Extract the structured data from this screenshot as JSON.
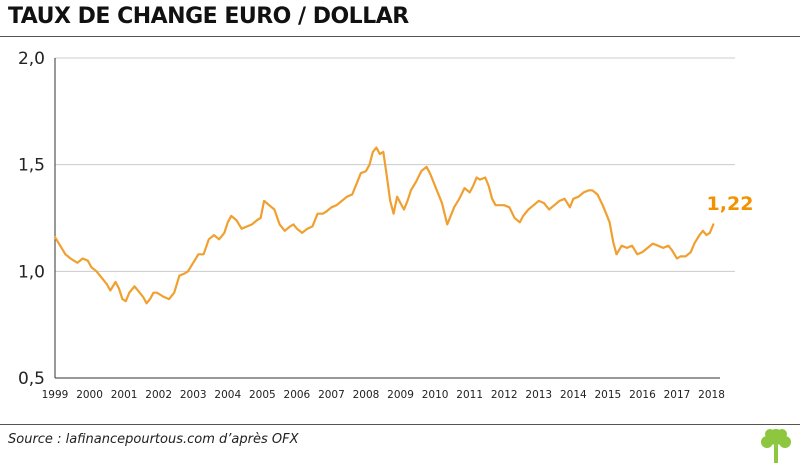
{
  "title": "TAUX DE CHANGE EURO / DOLLAR",
  "source": "Source : lafinancepourtous.com d’après OFX",
  "colors": {
    "line": "#f0a030",
    "label": "#f39200",
    "grid": "#cccccc",
    "axis": "#333333",
    "logo": "#8dc63f"
  },
  "chart_data": {
    "type": "line",
    "title": "TAUX DE CHANGE EURO / DOLLAR",
    "xlabel": "",
    "ylabel": "",
    "xlim": [
      1999,
      2018.1
    ],
    "ylim": [
      0.5,
      2.0
    ],
    "y_ticks": [
      {
        "value": 0.5,
        "label": "0,5"
      },
      {
        "value": 1.0,
        "label": "1,0"
      },
      {
        "value": 1.5,
        "label": "1,5"
      },
      {
        "value": 2.0,
        "label": "2,0"
      }
    ],
    "x_ticks": [
      "1999",
      "2000",
      "2001",
      "2002",
      "2003",
      "2004",
      "2005",
      "2006",
      "2007",
      "2008",
      "2009",
      "2010",
      "2011",
      "2012",
      "2013",
      "2014",
      "2015",
      "2016",
      "2017",
      "2018"
    ],
    "grid": true,
    "end_label": "1,22",
    "series": [
      {
        "name": "EUR/USD",
        "x": [
          1999.0,
          1999.15,
          1999.3,
          1999.45,
          1999.55,
          1999.65,
          1999.8,
          1999.95,
          2000.05,
          2000.2,
          2000.35,
          2000.5,
          2000.6,
          2000.75,
          2000.85,
          2000.95,
          2001.05,
          2001.15,
          2001.3,
          2001.45,
          2001.55,
          2001.65,
          2001.75,
          2001.85,
          2001.95,
          2002.05,
          2002.15,
          2002.3,
          2002.45,
          2002.6,
          2002.75,
          2002.85,
          2003.0,
          2003.15,
          2003.3,
          2003.45,
          2003.6,
          2003.75,
          2003.9,
          2004.0,
          2004.1,
          2004.25,
          2004.4,
          2004.55,
          2004.7,
          2004.85,
          2004.95,
          2005.05,
          2005.2,
          2005.35,
          2005.5,
          2005.65,
          2005.8,
          2005.9,
          2006.0,
          2006.15,
          2006.3,
          2006.45,
          2006.6,
          2006.75,
          2006.85,
          2007.0,
          2007.15,
          2007.3,
          2007.45,
          2007.6,
          2007.75,
          2007.85,
          2008.0,
          2008.1,
          2008.2,
          2008.3,
          2008.4,
          2008.5,
          2008.6,
          2008.7,
          2008.8,
          2008.9,
          2009.0,
          2009.1,
          2009.2,
          2009.3,
          2009.45,
          2009.6,
          2009.75,
          2009.85,
          2009.95,
          2010.05,
          2010.2,
          2010.35,
          2010.45,
          2010.55,
          2010.7,
          2010.85,
          2011.0,
          2011.1,
          2011.2,
          2011.3,
          2011.45,
          2011.55,
          2011.65,
          2011.75,
          2011.9,
          2012.0,
          2012.15,
          2012.3,
          2012.45,
          2012.55,
          2012.7,
          2012.85,
          2013.0,
          2013.15,
          2013.3,
          2013.45,
          2013.6,
          2013.75,
          2013.9,
          2014.0,
          2014.15,
          2014.3,
          2014.45,
          2014.55,
          2014.7,
          2014.85,
          2014.95,
          2015.05,
          2015.15,
          2015.25,
          2015.4,
          2015.55,
          2015.7,
          2015.85,
          2016.0,
          2016.15,
          2016.3,
          2016.45,
          2016.6,
          2016.75,
          2016.85,
          2017.0,
          2017.1,
          2017.25,
          2017.4,
          2017.5,
          2017.65,
          2017.75,
          2017.85,
          2017.95,
          2018.05
        ],
        "values": [
          1.16,
          1.12,
          1.08,
          1.06,
          1.05,
          1.04,
          1.06,
          1.05,
          1.02,
          1.0,
          0.97,
          0.94,
          0.91,
          0.95,
          0.92,
          0.87,
          0.86,
          0.9,
          0.93,
          0.9,
          0.88,
          0.85,
          0.87,
          0.9,
          0.9,
          0.89,
          0.88,
          0.87,
          0.9,
          0.98,
          0.99,
          1.0,
          1.04,
          1.08,
          1.08,
          1.15,
          1.17,
          1.15,
          1.18,
          1.23,
          1.26,
          1.24,
          1.2,
          1.21,
          1.22,
          1.24,
          1.25,
          1.33,
          1.31,
          1.29,
          1.22,
          1.19,
          1.21,
          1.22,
          1.2,
          1.18,
          1.2,
          1.21,
          1.27,
          1.27,
          1.28,
          1.3,
          1.31,
          1.33,
          1.35,
          1.36,
          1.42,
          1.46,
          1.47,
          1.5,
          1.56,
          1.58,
          1.55,
          1.56,
          1.45,
          1.33,
          1.27,
          1.35,
          1.32,
          1.29,
          1.33,
          1.38,
          1.42,
          1.47,
          1.49,
          1.46,
          1.42,
          1.38,
          1.32,
          1.22,
          1.26,
          1.3,
          1.34,
          1.39,
          1.37,
          1.4,
          1.44,
          1.43,
          1.44,
          1.4,
          1.34,
          1.31,
          1.31,
          1.31,
          1.3,
          1.25,
          1.23,
          1.26,
          1.29,
          1.31,
          1.33,
          1.32,
          1.29,
          1.31,
          1.33,
          1.34,
          1.3,
          1.34,
          1.35,
          1.37,
          1.38,
          1.38,
          1.36,
          1.31,
          1.27,
          1.23,
          1.14,
          1.08,
          1.12,
          1.11,
          1.12,
          1.08,
          1.09,
          1.11,
          1.13,
          1.12,
          1.11,
          1.12,
          1.1,
          1.06,
          1.07,
          1.07,
          1.09,
          1.13,
          1.17,
          1.19,
          1.17,
          1.18,
          1.22
        ]
      }
    ]
  }
}
